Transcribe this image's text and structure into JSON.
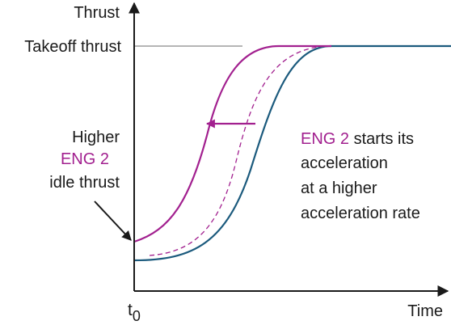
{
  "axes": {
    "y_label": "Thrust",
    "x_label": "Time",
    "x_origin_label": "t",
    "x_origin_subscript": "0"
  },
  "reference": {
    "label": "Takeoff thrust"
  },
  "annotations": {
    "left_note": [
      "Higher",
      "ENG 2",
      "idle thrust"
    ],
    "right_note_highlight": "ENG 2",
    "right_note_first_line_rest": " starts its",
    "right_note_lines": [
      "acceleration",
      "at a higher",
      "acceleration rate"
    ]
  },
  "colors": {
    "eng1_curve": "#1b5a7d",
    "eng2_curve": "#a2208f",
    "reference_line": "#b5b5b5",
    "axis": "#1a1a1a",
    "text": "#1a1a1a"
  }
}
